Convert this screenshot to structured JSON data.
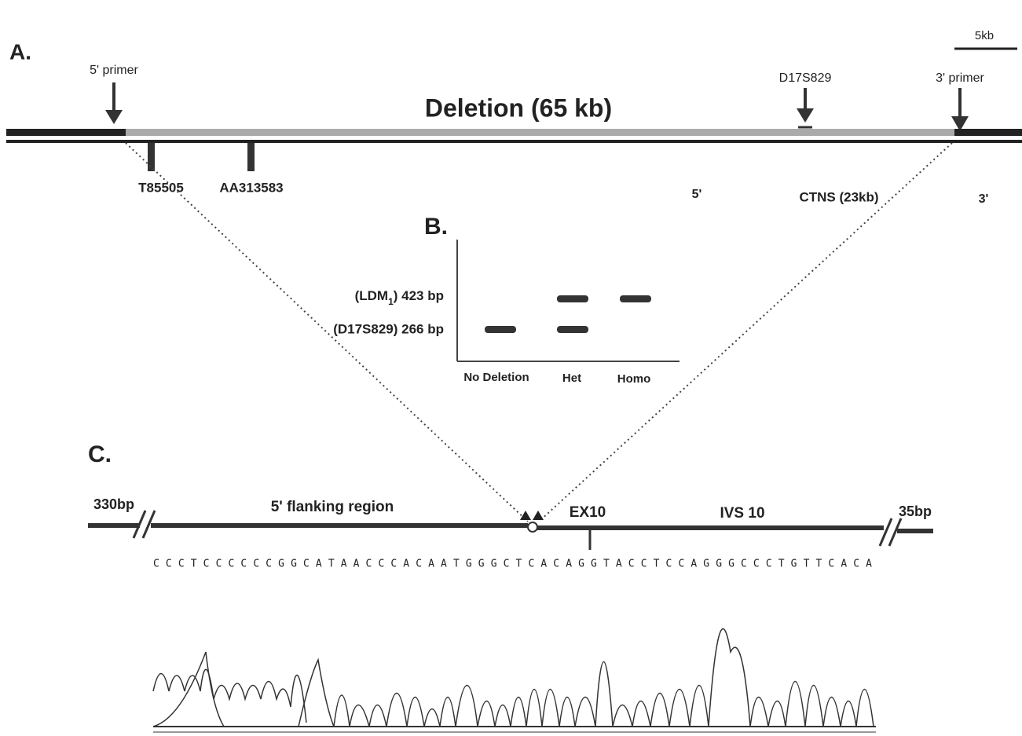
{
  "scale_bar": "5kb",
  "panel_a": {
    "label": "A.",
    "title": "Deletion (65 kb)",
    "primer_5": "5' primer",
    "marker": "D17S829",
    "primer_3": "3' primer",
    "ests": [
      "T85505",
      "AA313583"
    ],
    "gene_5": "5'",
    "gene": "CTNS (23kb)",
    "gene_3": "3'"
  },
  "panel_b": {
    "label": "B.",
    "row_1": {
      "prefix": "(LDM",
      "subscript": "1",
      "suffix": ") 423 bp"
    },
    "row_2": "(D17S829) 266 bp",
    "lanes": [
      "No Deletion",
      "Het",
      "Homo"
    ]
  },
  "panel_c": {
    "label": "C.",
    "left": "330bp",
    "region": "5' flanking region",
    "exon": "EX10",
    "intron": "IVS 10",
    "right": "35bp",
    "sequence": "CCCTCCCCCCGGCATAACCCACAATGGGCTCACAGGTACCTCCAGGGCCCTGTTCACA"
  }
}
